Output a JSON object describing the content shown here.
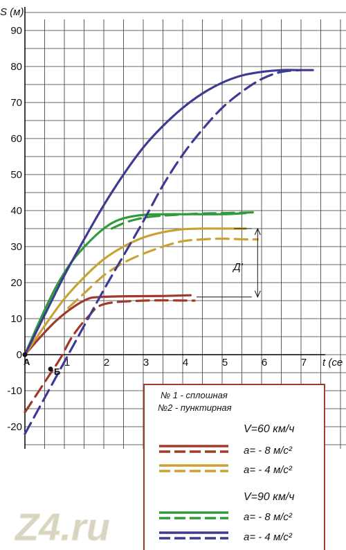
{
  "chart_data": {
    "type": "line",
    "ylabel": "S (м)",
    "xlabel": "t (се",
    "xlim": [
      0,
      8
    ],
    "ylim": [
      -25,
      95
    ],
    "x_ticks": [
      1,
      2,
      3,
      4,
      5,
      6,
      7
    ],
    "y_ticks": [
      -20,
      -10,
      0,
      10,
      20,
      30,
      40,
      50,
      60,
      70,
      80,
      90
    ],
    "grid": true,
    "points": [
      {
        "label": "А",
        "x": 0,
        "y": 0
      },
      {
        "label": "Б",
        "x": 0.65,
        "y": -4
      }
    ],
    "annotation": {
      "label": "Д'",
      "y_from": 16,
      "y_to": 35,
      "x": 5.9
    },
    "series": [
      {
        "id": "s60a8_solid",
        "color": "#a0392b",
        "dash": false,
        "x": [
          0,
          0.4,
          0.8,
          1.2,
          1.6,
          1.9,
          2.5,
          3.5,
          4.2
        ],
        "y": [
          0,
          5,
          9.5,
          13,
          15.5,
          16,
          16.2,
          16.3,
          16.5
        ]
      },
      {
        "id": "s60a8_dashed",
        "color": "#a0392b",
        "dash": true,
        "x": [
          0,
          0.3,
          0.6,
          0.9,
          1.2,
          1.6,
          2,
          3,
          4.3
        ],
        "y": [
          -16,
          -11,
          -6,
          -1,
          5,
          10.5,
          14,
          15,
          15
        ]
      },
      {
        "id": "s60a4_solid",
        "color": "#c9a233",
        "dash": false,
        "x": [
          0,
          0.5,
          1,
          1.5,
          2,
          2.5,
          3,
          3.5,
          4,
          4.5,
          5,
          5.6
        ],
        "y": [
          0,
          8,
          15.5,
          21.5,
          26.5,
          30,
          32.5,
          34,
          34.8,
          35,
          35,
          35
        ]
      },
      {
        "id": "s60a4_dashed",
        "color": "#c9a233",
        "dash": true,
        "x": [
          1.1,
          1.5,
          2,
          2.5,
          3,
          3.5,
          4,
          4.5,
          5,
          5.6,
          5.9
        ],
        "y": [
          13,
          17,
          22,
          25.5,
          28,
          30,
          31.5,
          32,
          32.2,
          32,
          32
        ]
      },
      {
        "id": "s90a8_solid",
        "color": "#2f9a3a",
        "dash": false,
        "x": [
          0,
          0.4,
          0.8,
          1.2,
          1.6,
          2,
          2.4,
          3,
          4,
          5,
          5.6
        ],
        "y": [
          0,
          10,
          19,
          26,
          31,
          35,
          37.5,
          38.8,
          39,
          39,
          39.3
        ]
      },
      {
        "id": "s90a8_dashed",
        "color": "#2f9a3a",
        "dash": true,
        "x": [
          2.2,
          2.5,
          2.8,
          3.2,
          3.8,
          4.5,
          5,
          5.8
        ],
        "y": [
          35,
          36.5,
          37.5,
          38.3,
          38.8,
          39.2,
          39.3,
          39.5
        ]
      },
      {
        "id": "s90a4_solid",
        "color": "#3d3a94",
        "dash": false,
        "x": [
          0,
          0.5,
          1,
          1.5,
          2,
          2.5,
          3,
          3.5,
          4,
          4.5,
          5,
          5.5,
          6,
          6.5,
          7,
          7.3
        ],
        "y": [
          0,
          11,
          22,
          32,
          41.5,
          50,
          57.5,
          63.5,
          68.5,
          72.5,
          75.5,
          77.5,
          78.5,
          79,
          79,
          79
        ]
      },
      {
        "id": "s90a4_dashed",
        "color": "#3d3a94",
        "dash": true,
        "x": [
          0,
          0.5,
          1,
          1.5,
          2,
          2.5,
          3,
          3.5,
          4,
          4.5,
          5,
          5.5,
          6,
          6.5,
          7
        ],
        "y": [
          -22,
          -12,
          -2,
          8,
          18,
          27.5,
          37,
          47,
          55.5,
          62.5,
          68.5,
          73,
          76.5,
          78.5,
          79
        ]
      }
    ],
    "legend": {
      "header_line1": "№ 1 - сплошная",
      "header_line2": "№2 - пунктирная",
      "group1_title": "V=60 км/ч",
      "group2_title": "V=90 км/ч",
      "entries": [
        {
          "label": "a= - 8 м/с²",
          "color": "#a0392b"
        },
        {
          "label": "a= - 4 м/с²",
          "color": "#c9a233"
        },
        {
          "label": "a= - 8 м/с²",
          "color": "#2f9a3a"
        },
        {
          "label": "a= - 4 м/с²",
          "color": "#3d3a94"
        }
      ]
    }
  },
  "watermark": "Z4.ru"
}
